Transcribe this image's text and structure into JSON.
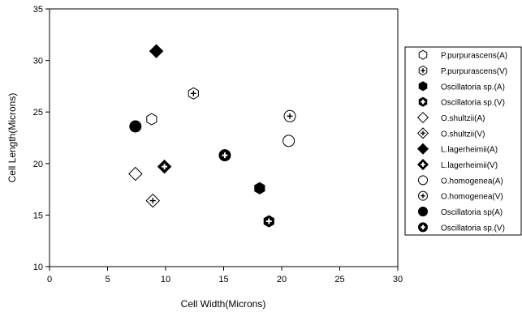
{
  "chart_data": {
    "type": "scatter",
    "xlabel": "Cell Width(Microns)",
    "ylabel": "Cell Length(Microns)",
    "xlim": [
      0,
      30
    ],
    "ylim": [
      10,
      35
    ],
    "xticks": [
      0,
      5,
      10,
      15,
      20,
      25,
      30
    ],
    "yticks": [
      10,
      15,
      20,
      25,
      30,
      35
    ],
    "grid": false,
    "legend_position": "right",
    "series": [
      {
        "name": "P.purpurascens(A)",
        "marker": "hexagon-open",
        "points": [
          [
            8.8,
            24.3
          ]
        ]
      },
      {
        "name": "P.purpurascens(V)",
        "marker": "hexagon-open-plus",
        "points": [
          [
            12.4,
            26.8
          ]
        ]
      },
      {
        "name": "Oscillatoria sp.(A)",
        "marker": "hexagon-filled",
        "points": [
          [
            18.1,
            17.6
          ]
        ]
      },
      {
        "name": "Oscillatoria sp.(V)",
        "marker": "hexagon-filled-plus",
        "points": [
          [
            18.9,
            14.4
          ]
        ]
      },
      {
        "name": "O.shultzii(A)",
        "marker": "diamond-open",
        "points": [
          [
            7.4,
            19.0
          ]
        ]
      },
      {
        "name": "O.shultzii(V)",
        "marker": "diamond-open-plus",
        "points": [
          [
            8.9,
            16.4
          ]
        ]
      },
      {
        "name": "L.lagerheimii(A)",
        "marker": "diamond-filled",
        "points": [
          [
            9.2,
            30.9
          ]
        ]
      },
      {
        "name": "L.lagerheimii(V)",
        "marker": "diamond-filled-plus",
        "points": [
          [
            9.9,
            19.7
          ]
        ]
      },
      {
        "name": "O.homogenea(A)",
        "marker": "circle-open",
        "points": [
          [
            20.6,
            22.2
          ]
        ]
      },
      {
        "name": "O.homogenea(V)",
        "marker": "circle-open-plus",
        "points": [
          [
            20.7,
            24.6
          ]
        ]
      },
      {
        "name": "Oscillatoria sp(A)",
        "marker": "circle-filled",
        "points": [
          [
            7.4,
            23.6
          ]
        ]
      },
      {
        "name": "Oscillatoria sp.(V)",
        "marker": "circle-filled-plus",
        "points": [
          [
            15.1,
            20.8
          ]
        ]
      }
    ]
  }
}
